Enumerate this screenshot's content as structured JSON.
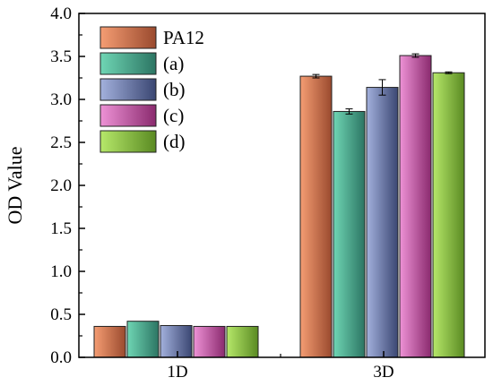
{
  "chart_data": {
    "type": "bar",
    "xlabel": "",
    "ylabel": "OD Value",
    "ylim": [
      0,
      4.0
    ],
    "yticks": [
      "0.0",
      "0.5",
      "1.0",
      "1.5",
      "2.0",
      "2.5",
      "3.0",
      "3.5",
      "4.0"
    ],
    "categories": [
      "1D",
      "3D"
    ],
    "legend_position": "top-left",
    "grid": false,
    "series": [
      {
        "name": "PA12",
        "color_light": "#f59d73",
        "color_dark": "#9a4a2e",
        "values": [
          0.36,
          3.27
        ],
        "errors": [
          0.0,
          0.02
        ]
      },
      {
        "name": "(a)",
        "color_light": "#6fd6b4",
        "color_dark": "#2c7563",
        "values": [
          0.42,
          2.86
        ],
        "errors": [
          0.0,
          0.03
        ]
      },
      {
        "name": "(b)",
        "color_light": "#a3b1dd",
        "color_dark": "#3a4672",
        "values": [
          0.37,
          3.14
        ],
        "errors": [
          0.0,
          0.09
        ]
      },
      {
        "name": "(c)",
        "color_light": "#ee92d6",
        "color_dark": "#8a2a6e",
        "values": [
          0.36,
          3.51
        ],
        "errors": [
          0.0,
          0.02
        ]
      },
      {
        "name": "(d)",
        "color_light": "#b6e86a",
        "color_dark": "#5a8a22",
        "values": [
          0.36,
          3.31
        ],
        "errors": [
          0.0,
          0.01
        ]
      }
    ]
  }
}
